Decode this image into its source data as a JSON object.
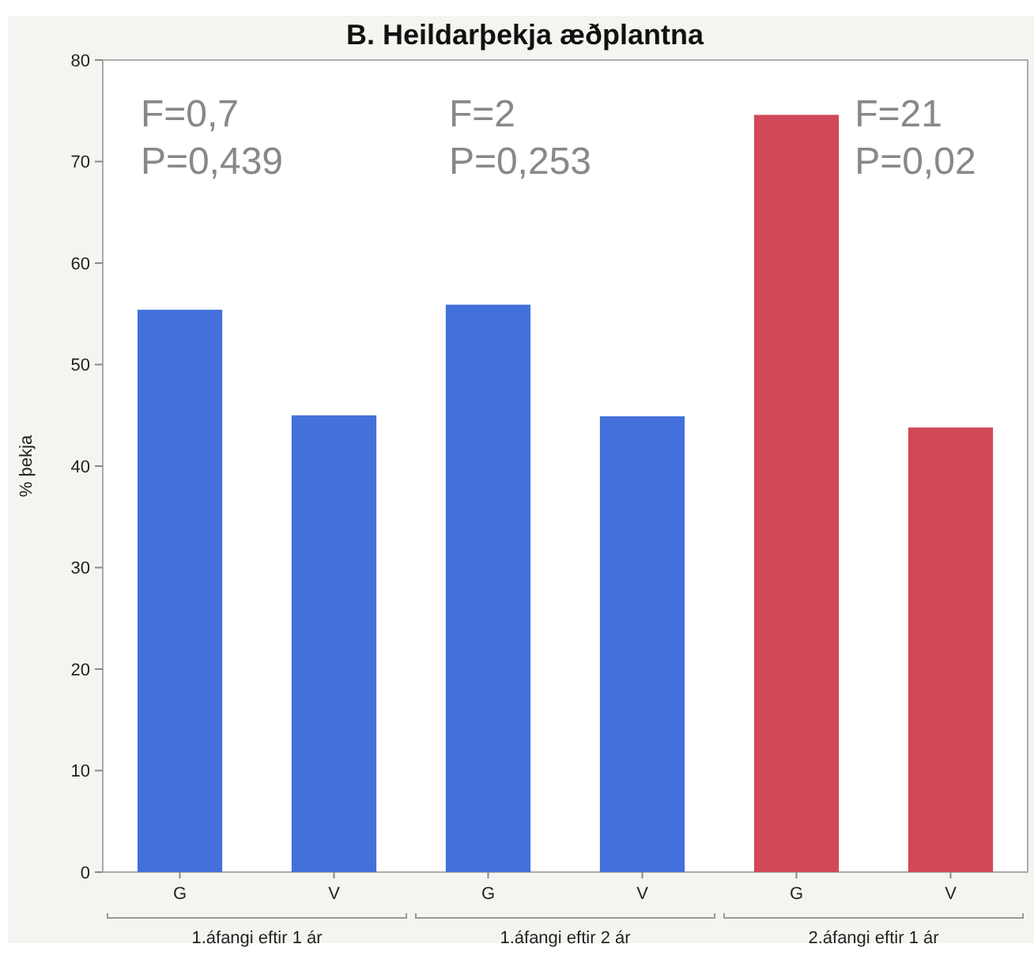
{
  "chart_data": {
    "type": "bar",
    "title": "B. Heildarþekja æðplantna",
    "ylabel": "% þekja",
    "categories": [
      "G",
      "V",
      "G",
      "V",
      "G",
      "V"
    ],
    "values": [
      55.4,
      45.0,
      55.9,
      44.9,
      74.6,
      43.8
    ],
    "colors": [
      "#4470dc",
      "#4470dc",
      "#4470dc",
      "#4470dc",
      "#d24858",
      "#d24858"
    ],
    "ylim": [
      0,
      80
    ],
    "yticks": [
      0,
      10,
      20,
      30,
      40,
      50,
      60,
      70,
      80
    ],
    "grid": false,
    "annotations": [
      "F=0,7\nP=0,439",
      "F=2\nP=0,253",
      "F=21\nP=0,02",
      "1.áfangi eftir 1 ár",
      "1.áfangi eftir 2 ár",
      "2.áfangi eftir 1 ár"
    ]
  }
}
